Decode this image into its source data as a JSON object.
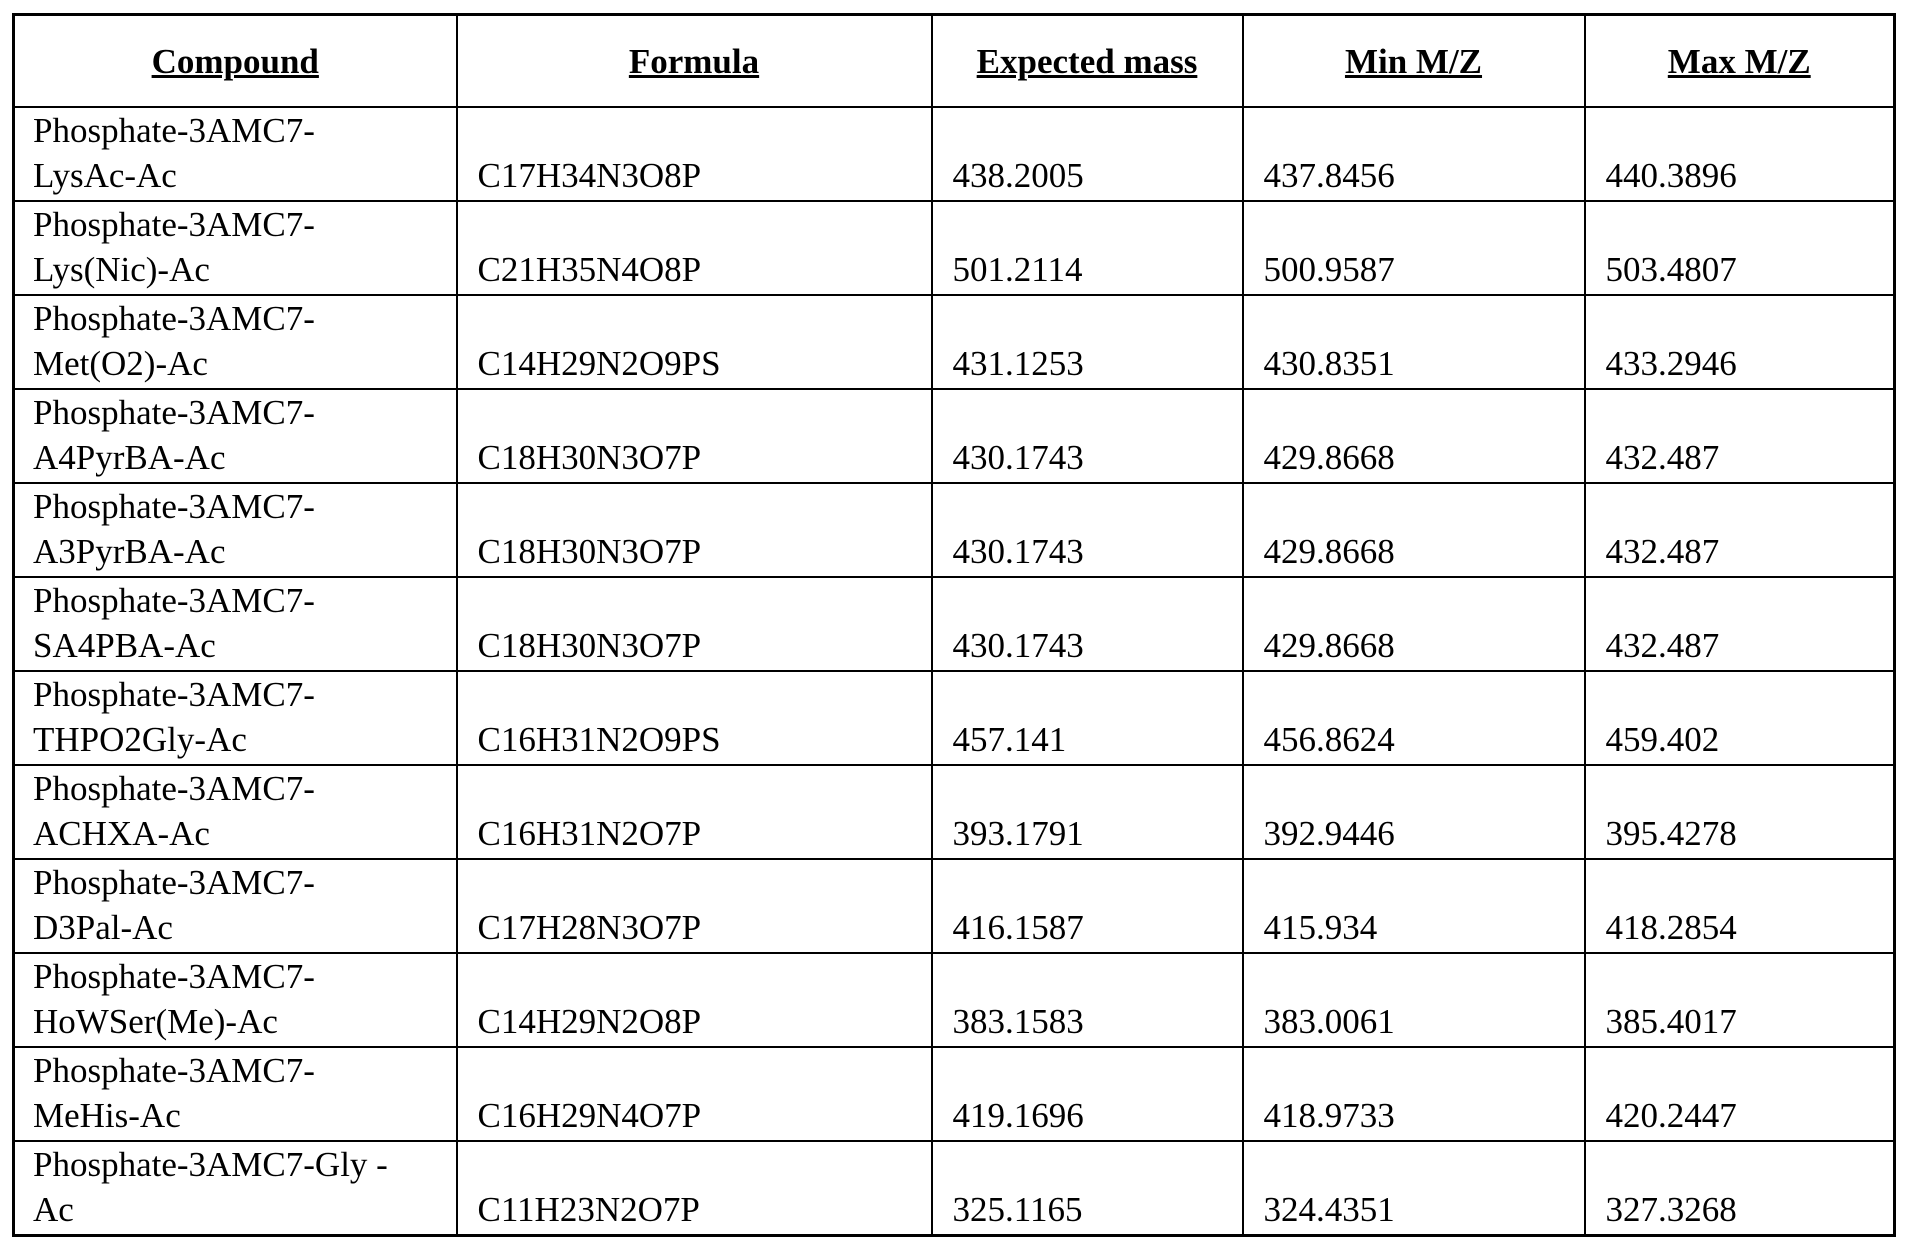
{
  "table": {
    "headers": [
      "Compound",
      "Formula",
      "Expected mass",
      "Min M/Z",
      "Max M/Z"
    ],
    "rows": [
      [
        "Phosphate-3AMC7-LysAc-Ac",
        "C17H34N3O8P",
        "438.2005",
        "437.8456",
        "440.3896"
      ],
      [
        "Phosphate-3AMC7-Lys(Nic)-Ac",
        "C21H35N4O8P",
        "501.2114",
        "500.9587",
        "503.4807"
      ],
      [
        "Phosphate-3AMC7-Met(O2)-Ac",
        "C14H29N2O9PS",
        "431.1253",
        "430.8351",
        "433.2946"
      ],
      [
        "Phosphate-3AMC7-A4PyrBA-Ac",
        "C18H30N3O7P",
        "430.1743",
        "429.8668",
        "432.487"
      ],
      [
        "Phosphate-3AMC7-A3PyrBA-Ac",
        "C18H30N3O7P",
        "430.1743",
        "429.8668",
        "432.487"
      ],
      [
        "Phosphate-3AMC7-SA4PBA-Ac",
        "C18H30N3O7P",
        "430.1743",
        "429.8668",
        "432.487"
      ],
      [
        "Phosphate-3AMC7-THPO2Gly-Ac",
        "C16H31N2O9PS",
        "457.141",
        "456.8624",
        "459.402"
      ],
      [
        "Phosphate-3AMC7-ACHXA-Ac",
        "C16H31N2O7P",
        "393.1791",
        "392.9446",
        "395.4278"
      ],
      [
        "Phosphate-3AMC7-D3Pal-Ac",
        "C17H28N3O7P",
        "416.1587",
        "415.934",
        "418.2854"
      ],
      [
        "Phosphate-3AMC7-HoWSer(Me)-Ac",
        "C14H29N2O8P",
        "383.1583",
        "383.0061",
        "385.4017"
      ],
      [
        "Phosphate-3AMC7-MeHis-Ac",
        "C16H29N4O7P",
        "419.1696",
        "418.9733",
        "420.2447"
      ],
      [
        "Phosphate-3AMC7-Gly -Ac",
        "C11H23N2O7P",
        "325.1165",
        "324.4351",
        "327.3268"
      ]
    ]
  }
}
